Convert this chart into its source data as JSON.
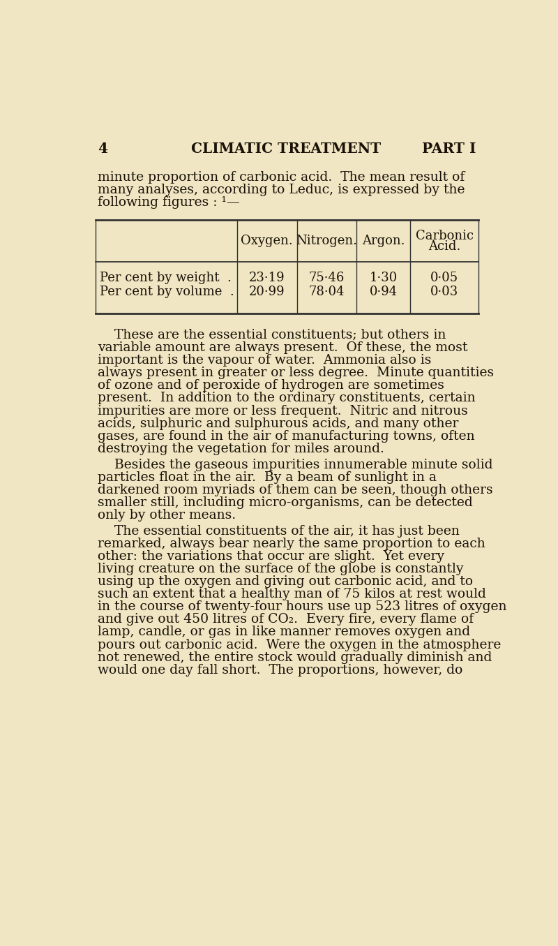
{
  "bg_color": "#f0e6c4",
  "text_color": "#1a1208",
  "page_number": "4",
  "header_center": "CLIMATIC TREATMENT",
  "header_right": "PART I",
  "font_size_header": 14.5,
  "font_size_body": 13.5,
  "font_size_table": 13.0,
  "para1_line1": "minute proportion of carbonic acid.  The mean result of",
  "para1_line2": "many analyses, according to Leduc, is expressed by the",
  "para1_line3": "following figures : ¹—",
  "table_headers": [
    "Oxygen.",
    "Nitrogen.",
    "Argon.",
    "Carbonic\nAcid."
  ],
  "table_row1_label": "Per cent by weight  .",
  "table_row2_label": "Per cent by volume  .",
  "table_row1_vals": [
    "23·19",
    "75·46",
    "1·30",
    "0·05"
  ],
  "table_row2_vals": [
    "20·99",
    "78·04",
    "0·94",
    "0·03"
  ],
  "para2_lines": [
    "    These are the essential constituents; but others in",
    "variable amount are always present.  Of these, the most",
    "important is the vapour of water.  Ammonia also is",
    "always present in greater or less degree.  Minute quantities",
    "of ozone and of peroxide of hydrogen are sometimes",
    "present.  In addition to the ordinary constituents, certain",
    "impurities are more or less frequent.  Nitric and nitrous",
    "acids, sulphuric and sulphurous acids, and many other",
    "gases, are found in the air of manufacturing towns, often",
    "destroying the vegetation for miles around."
  ],
  "para3_lines": [
    "    Besides the gaseous impurities innumerable minute solid",
    "particles float in the air.  By a beam of sunlight in a",
    "darkened room myriads of them can be seen, though others",
    "smaller still, including micro-organisms, can be detected",
    "only by other means."
  ],
  "para4_lines": [
    "    The essential constituents of the air, it has just been",
    "remarked, always bear nearly the same proportion to each",
    "other: the variations that occur are slight.  Yet every",
    "living creature on the surface of the globe is constantly",
    "using up the oxygen and giving out carbonic acid, and to",
    "such an extent that a healthy man of 75 kilos at rest would",
    "in the course of twenty-four hours use up 523 litres of oxygen",
    "and give out 450 litres of CO₂.  Every fire, every flame of",
    "lamp, candle, or gas in like manner removes oxygen and",
    "pours out carbonic acid.  Were the oxygen in the atmosphere",
    "not renewed, the entire stock would gradually diminish and",
    "would one day fall short.  The proportions, however, do"
  ]
}
